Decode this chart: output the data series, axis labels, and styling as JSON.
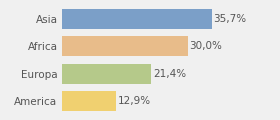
{
  "categories": [
    "Asia",
    "Africa",
    "Europa",
    "America"
  ],
  "values": [
    35.7,
    30.0,
    21.4,
    12.9
  ],
  "labels": [
    "35,7%",
    "30,0%",
    "21,4%",
    "12,9%"
  ],
  "colors": [
    "#7b9fc8",
    "#e8bc8a",
    "#b5c98a",
    "#f0d070"
  ],
  "xlim": [
    0,
    44
  ],
  "bar_height": 0.72,
  "background_color": "#f0f0f0",
  "label_fontsize": 7.5,
  "tick_fontsize": 7.5,
  "label_color": "#555555",
  "tick_color": "#555555"
}
